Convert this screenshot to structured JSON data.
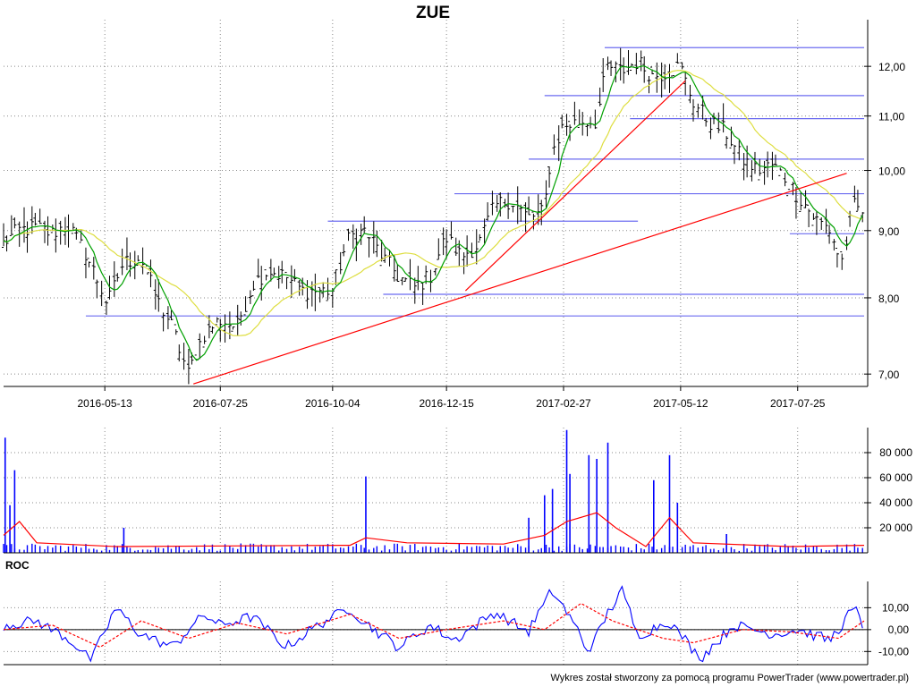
{
  "chart_data": [
    {
      "panel": "price",
      "type": "ohlc",
      "title": "ZUE",
      "x_ticks": [
        "2016-05-13",
        "2016-07-25",
        "2016-10-04",
        "2016-12-15",
        "2017-02-27",
        "2017-05-12",
        "2017-07-25"
      ],
      "x_range": [
        "2016-03-10",
        "2017-09-05"
      ],
      "y_scale": "log",
      "y_ticks": [
        "7,00",
        "8,00",
        "9,00",
        "10,00",
        "11,00",
        "12,00"
      ],
      "y_tick_values": [
        7,
        8,
        9,
        10,
        11,
        12
      ],
      "ylim": [
        6.85,
        12.9
      ],
      "close": [
        [
          "2016-03-10",
          8.8
        ],
        [
          "2016-03-20",
          9.0
        ],
        [
          "2016-03-31",
          9.05
        ],
        [
          "2016-04-10",
          8.95
        ],
        [
          "2016-04-20",
          9.1
        ],
        [
          "2016-04-30",
          8.7
        ],
        [
          "2016-05-10",
          8.2
        ],
        [
          "2016-05-15",
          7.9
        ],
        [
          "2016-05-25",
          8.5
        ],
        [
          "2016-06-05",
          8.6
        ],
        [
          "2016-06-15",
          8.0
        ],
        [
          "2016-06-25",
          7.6
        ],
        [
          "2016-07-05",
          7.0
        ],
        [
          "2016-07-15",
          7.5
        ],
        [
          "2016-07-25",
          7.7
        ],
        [
          "2016-08-05",
          7.6
        ],
        [
          "2016-08-15",
          8.2
        ],
        [
          "2016-08-25",
          8.4
        ],
        [
          "2016-09-05",
          8.3
        ],
        [
          "2016-09-15",
          8.1
        ],
        [
          "2016-09-25",
          8.1
        ],
        [
          "2016-10-04",
          8.1
        ],
        [
          "2016-10-15",
          8.9
        ],
        [
          "2016-10-25",
          9.0
        ],
        [
          "2016-11-05",
          8.6
        ],
        [
          "2016-11-15",
          8.3
        ],
        [
          "2016-11-25",
          8.15
        ],
        [
          "2016-12-05",
          8.3
        ],
        [
          "2016-12-15",
          8.9
        ],
        [
          "2016-12-25",
          8.6
        ],
        [
          "2017-01-05",
          8.8
        ],
        [
          "2017-01-15",
          9.4
        ],
        [
          "2017-01-25",
          9.5
        ],
        [
          "2017-02-05",
          9.2
        ],
        [
          "2017-02-15",
          9.3
        ],
        [
          "2017-02-20",
          10.3
        ],
        [
          "2017-02-27",
          10.8
        ],
        [
          "2017-03-10",
          10.9
        ],
        [
          "2017-03-20",
          10.9
        ],
        [
          "2017-03-27",
          12.0
        ],
        [
          "2017-04-05",
          11.9
        ],
        [
          "2017-04-15",
          12.1
        ],
        [
          "2017-04-25",
          11.8
        ],
        [
          "2017-05-05",
          11.9
        ],
        [
          "2017-05-12",
          12.0
        ],
        [
          "2017-05-20",
          11.3
        ],
        [
          "2017-05-30",
          10.9
        ],
        [
          "2017-06-10",
          10.7
        ],
        [
          "2017-06-20",
          10.2
        ],
        [
          "2017-06-30",
          10.0
        ],
        [
          "2017-07-10",
          10.1
        ],
        [
          "2017-07-25",
          9.6
        ],
        [
          "2017-08-05",
          9.2
        ],
        [
          "2017-08-15",
          9.0
        ],
        [
          "2017-08-22",
          8.5
        ],
        [
          "2017-08-30",
          9.4
        ],
        [
          "2017-09-05",
          9.3
        ]
      ],
      "support_levels": [
        12.4,
        11.4,
        10.95,
        10.2,
        9.6,
        9.15,
        8.95,
        8.05,
        7.75
      ],
      "trendlines": [
        {
          "from": [
            "2016-07-08",
            6.88
          ],
          "to": [
            "2017-08-25",
            9.95
          ]
        },
        {
          "from": [
            "2016-12-27",
            8.1
          ],
          "to": [
            "2017-05-15",
            11.7
          ]
        }
      ],
      "colors": {
        "bars": "#000000",
        "ma_short": "#00a000",
        "ma_long": "#dede40",
        "support": "#6b6bf0",
        "trend": "#ff0000"
      }
    },
    {
      "panel": "volume",
      "type": "bar",
      "y_ticks": [
        "20 000",
        "40 000",
        "60 000",
        "80 000"
      ],
      "y_tick_values": [
        20000,
        40000,
        60000,
        80000
      ],
      "ylim": [
        0,
        100000
      ],
      "peaks": [
        [
          "2016-03-11",
          92000
        ],
        [
          "2016-03-14",
          38000
        ],
        [
          "2016-03-17",
          66000
        ],
        [
          "2016-05-25",
          20000
        ],
        [
          "2016-10-25",
          61000
        ],
        [
          "2017-02-05",
          28000
        ],
        [
          "2017-02-15",
          46000
        ],
        [
          "2017-02-20",
          51000
        ],
        [
          "2017-03-01",
          98000
        ],
        [
          "2017-03-03",
          63000
        ],
        [
          "2017-03-15",
          78000
        ],
        [
          "2017-03-20",
          75000
        ],
        [
          "2017-03-27",
          88000
        ],
        [
          "2017-04-25",
          58000
        ],
        [
          "2017-05-05",
          78000
        ],
        [
          "2017-05-10",
          40000
        ],
        [
          "2017-06-10",
          15000
        ]
      ],
      "average_line": [
        [
          "2016-03-10",
          14000
        ],
        [
          "2016-03-20",
          25000
        ],
        [
          "2016-03-31",
          8000
        ],
        [
          "2016-05-20",
          5000
        ],
        [
          "2016-10-15",
          6000
        ],
        [
          "2016-10-25",
          12000
        ],
        [
          "2016-11-20",
          8000
        ],
        [
          "2017-01-20",
          7000
        ],
        [
          "2017-02-15",
          14000
        ],
        [
          "2017-03-01",
          25000
        ],
        [
          "2017-03-20",
          32000
        ],
        [
          "2017-04-01",
          20000
        ],
        [
          "2017-04-20",
          5000
        ],
        [
          "2017-05-05",
          28000
        ],
        [
          "2017-05-20",
          8000
        ],
        [
          "2017-07-20",
          5000
        ],
        [
          "2017-09-05",
          6000
        ]
      ],
      "colors": {
        "bars": "#0000ff",
        "average": "#ff0000"
      }
    },
    {
      "panel": "roc",
      "type": "line",
      "title": "ROC",
      "y_ticks": [
        "10,00",
        "0,00",
        "-10,00"
      ],
      "y_tick_values": [
        10,
        0,
        -10
      ],
      "ylim": [
        -16,
        22
      ],
      "roc": [
        [
          "2016-03-10",
          2
        ],
        [
          "2016-03-31",
          4
        ],
        [
          "2016-04-20",
          -4
        ],
        [
          "2016-05-05",
          -14
        ],
        [
          "2016-05-20",
          10
        ],
        [
          "2016-06-05",
          -2
        ],
        [
          "2016-06-25",
          -8
        ],
        [
          "2016-07-15",
          7
        ],
        [
          "2016-07-25",
          2
        ],
        [
          "2016-08-15",
          6
        ],
        [
          "2016-09-05",
          -8
        ],
        [
          "2016-09-25",
          2
        ],
        [
          "2016-10-15",
          10
        ],
        [
          "2016-10-25",
          3
        ],
        [
          "2016-11-15",
          -8
        ],
        [
          "2016-12-05",
          2
        ],
        [
          "2016-12-20",
          -5
        ],
        [
          "2017-01-15",
          8
        ],
        [
          "2017-02-05",
          -1
        ],
        [
          "2017-02-20",
          18
        ],
        [
          "2017-03-05",
          4
        ],
        [
          "2017-03-15",
          -10
        ],
        [
          "2017-04-05",
          19
        ],
        [
          "2017-04-15",
          -3
        ],
        [
          "2017-05-05",
          4
        ],
        [
          "2017-05-25",
          -13
        ],
        [
          "2017-06-15",
          2
        ],
        [
          "2017-07-10",
          -2
        ],
        [
          "2017-07-25",
          0
        ],
        [
          "2017-08-15",
          -5
        ],
        [
          "2017-08-30",
          10
        ],
        [
          "2017-09-05",
          0
        ]
      ],
      "signal": [
        [
          "2016-03-10",
          0
        ],
        [
          "2016-04-10",
          2
        ],
        [
          "2016-05-10",
          -8
        ],
        [
          "2016-06-05",
          4
        ],
        [
          "2016-07-05",
          -4
        ],
        [
          "2016-08-05",
          3
        ],
        [
          "2016-09-05",
          -2
        ],
        [
          "2016-10-15",
          7
        ],
        [
          "2016-11-15",
          -4
        ],
        [
          "2016-12-15",
          0
        ],
        [
          "2017-01-20",
          4
        ],
        [
          "2017-02-15",
          0
        ],
        [
          "2017-03-10",
          12
        ],
        [
          "2017-03-30",
          4
        ],
        [
          "2017-05-01",
          -4
        ],
        [
          "2017-05-20",
          -6
        ],
        [
          "2017-06-20",
          0
        ],
        [
          "2017-07-20",
          -1
        ],
        [
          "2017-08-20",
          -4
        ],
        [
          "2017-09-05",
          4
        ]
      ],
      "colors": {
        "roc": "#0000ff",
        "signal": "#ff0000",
        "zero": "#000000"
      }
    }
  ],
  "footer": "Wykres został stworzony za pomocą programu PowerTrader (www.powertrader.pl)"
}
